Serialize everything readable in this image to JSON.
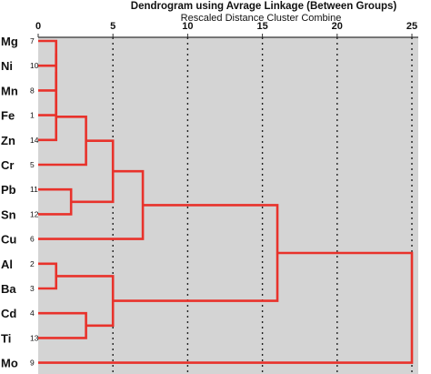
{
  "title": "Dendrogram using Avrage Linkage (Between Groups)",
  "subtitle": "Rescaled Distance Cluster Combine",
  "colors": {
    "link": "#e8322b",
    "panel": "#d4d4d4",
    "text": "#111111"
  },
  "chart_data": {
    "type": "dendrogram",
    "title": "Dendrogram using Avrage Linkage (Between Groups)",
    "xlabel": "Rescaled Distance Cluster Combine",
    "xlim": [
      0,
      25
    ],
    "xticks": [
      0,
      5,
      10,
      15,
      20,
      25
    ],
    "grid": "dotted vertical at 5, 10, 15, 20, 25",
    "leaves": [
      {
        "label": "Mg",
        "id": "7"
      },
      {
        "label": "Ni",
        "id": "10"
      },
      {
        "label": "Mn",
        "id": "8"
      },
      {
        "label": "Fe",
        "id": "1"
      },
      {
        "label": "Zn",
        "id": "14"
      },
      {
        "label": "Cr",
        "id": "5"
      },
      {
        "label": "Pb",
        "id": "11"
      },
      {
        "label": "Sn",
        "id": "12"
      },
      {
        "label": "Cu",
        "id": "6"
      },
      {
        "label": "Al",
        "id": "2"
      },
      {
        "label": "Ba",
        "id": "3"
      },
      {
        "label": "Cd",
        "id": "4"
      },
      {
        "label": "Ti",
        "id": "13"
      },
      {
        "label": "Mo",
        "id": "9"
      }
    ],
    "merges": [
      {
        "a": "Mg",
        "b": "Ni",
        "height": 1.2,
        "node": "c1"
      },
      {
        "a": "c1",
        "b": "Mn",
        "height": 1.2,
        "node": "c2"
      },
      {
        "a": "c2",
        "b": "Fe",
        "height": 1.2,
        "node": "c3"
      },
      {
        "a": "c3",
        "b": "Zn",
        "height": 1.2,
        "node": "c4"
      },
      {
        "a": "Al",
        "b": "Ba",
        "height": 1.2,
        "node": "c5"
      },
      {
        "a": "Pb",
        "b": "Sn",
        "height": 2.2,
        "node": "c6"
      },
      {
        "a": "c4",
        "b": "Cr",
        "height": 3.2,
        "node": "c7"
      },
      {
        "a": "Cd",
        "b": "Ti",
        "height": 3.2,
        "node": "c8"
      },
      {
        "a": "c7",
        "b": "c6",
        "height": 5.0,
        "node": "c9"
      },
      {
        "a": "c5",
        "b": "c8",
        "height": 5.0,
        "node": "c10"
      },
      {
        "a": "c9",
        "b": "Cu",
        "height": 7.0,
        "node": "c11"
      },
      {
        "a": "c11",
        "b": "c10",
        "height": 16.0,
        "node": "c12"
      },
      {
        "a": "c12",
        "b": "Mo",
        "height": 25.0,
        "node": "c13"
      }
    ]
  }
}
